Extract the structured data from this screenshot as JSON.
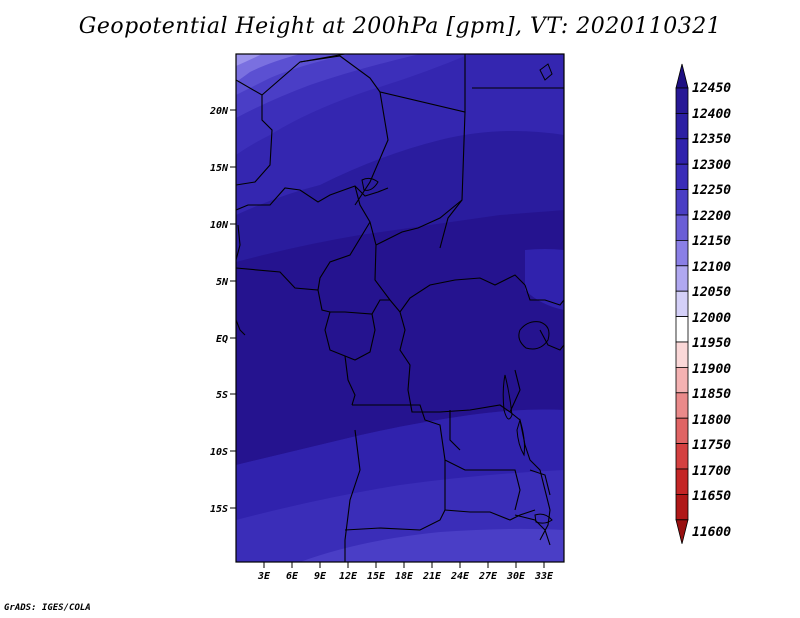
{
  "title": "Geopotential Height at 200hPa [gpm], VT: 2020110321",
  "credit": "GrADS: IGES/COLA",
  "map": {
    "lat_labels": [
      "20N",
      "15N",
      "10N",
      "5N",
      "EQ",
      "5S",
      "10S",
      "15S"
    ],
    "lon_labels": [
      "3E",
      "6E",
      "9E",
      "12E",
      "15E",
      "18E",
      "21E",
      "24E",
      "27E",
      "30E",
      "33E"
    ]
  },
  "colorbar": {
    "labels": [
      "12450",
      "12400",
      "12350",
      "12300",
      "12250",
      "12200",
      "12150",
      "12100",
      "12050",
      "12000",
      "11950",
      "11900",
      "11850",
      "11800",
      "11750",
      "11700",
      "11650",
      "11600"
    ],
    "colors": [
      "#1e0f82",
      "#271896",
      "#2c1fa3",
      "#3022ad",
      "#3a2db8",
      "#4a3ec4",
      "#6a5ed6",
      "#8a7fe6",
      "#b0a8f0",
      "#d4d0f8",
      "#ffffff",
      "#fbd8d8",
      "#f4b2b2",
      "#ea8a8a",
      "#e06464",
      "#d44040",
      "#c42626",
      "#b01818",
      "#981010"
    ]
  }
}
